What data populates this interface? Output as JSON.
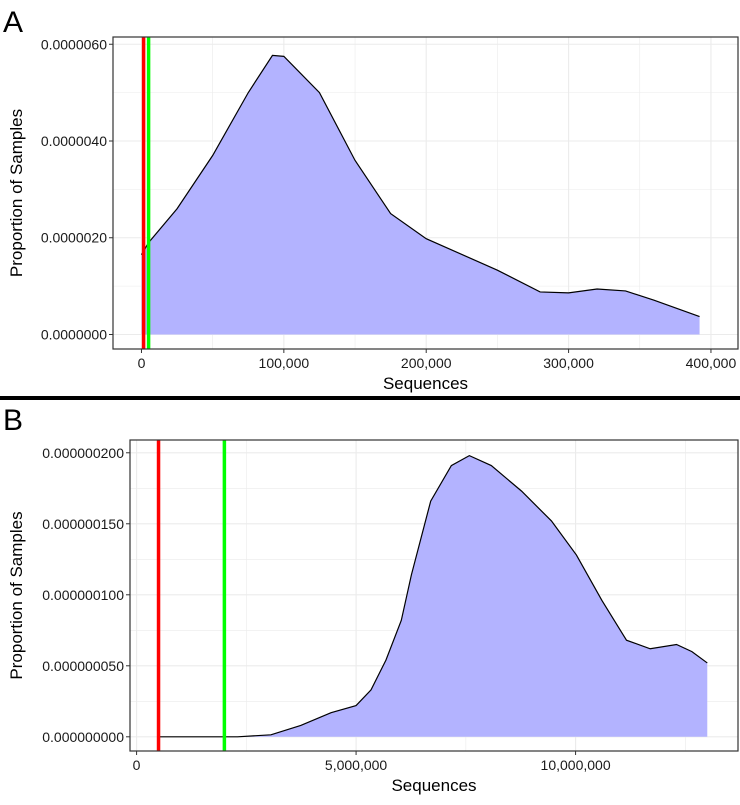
{
  "chart_data": [
    {
      "panel_label": "A",
      "type": "area",
      "xlabel": "Sequences",
      "ylabel": "Proportion of Samples",
      "xlim": [
        -20000,
        419000
      ],
      "ylim": [
        -3e-07,
        6.15e-06
      ],
      "x_ticks": [
        0,
        100000,
        200000,
        300000,
        400000
      ],
      "x_tick_labels": [
        "0",
        "100,000",
        "200,000",
        "300,000",
        "400,000"
      ],
      "y_ticks": [
        0,
        2e-06,
        4e-06,
        6e-06
      ],
      "y_tick_labels": [
        "0.0000000",
        "0.0000020",
        "0.0000040",
        "0.0000060"
      ],
      "grid": true,
      "fill_color": "#b3b3ff",
      "vlines": [
        {
          "x": 1500,
          "color": "#ff0000"
        },
        {
          "x": 5000,
          "color": "#00ff00"
        }
      ],
      "x": [
        0,
        5000,
        25000,
        50000,
        75000,
        92000,
        100000,
        125000,
        150000,
        175000,
        200000,
        250000,
        280000,
        300000,
        320000,
        340000,
        360000,
        392000
      ],
      "y": [
        1.65e-06,
        1.9e-06,
        2.6e-06,
        3.7e-06,
        5e-06,
        5.77e-06,
        5.75e-06,
        5e-06,
        3.6e-06,
        2.5e-06,
        1.98e-06,
        1.33e-06,
        8.8e-07,
        8.6e-07,
        9.4e-07,
        9e-07,
        7.1e-07,
        3.7e-07
      ]
    },
    {
      "panel_label": "B",
      "type": "area",
      "xlabel": "Sequences",
      "ylabel": "Proportion of Samples",
      "xlim": [
        -150000,
        13700000
      ],
      "ylim": [
        -1e-08,
        2.09e-07
      ],
      "x_ticks": [
        0,
        5000000,
        10000000
      ],
      "x_tick_labels": [
        "0",
        "5,000,000",
        "10,000,000"
      ],
      "y_ticks": [
        0,
        5e-08,
        1e-07,
        1.5e-07,
        2e-07
      ],
      "y_tick_labels": [
        "0.000000000",
        "0.000000050",
        "0.000000100",
        "0.000000150",
        "0.000000200"
      ],
      "grid": true,
      "fill_color": "#b3b3ff",
      "vlines": [
        {
          "x": 500000,
          "color": "#ff0000"
        },
        {
          "x": 2000000,
          "color": "#00ff00"
        }
      ],
      "x": [
        500000,
        2300000,
        3060000,
        3740000,
        4430000,
        5000000,
        5340000,
        5680000,
        6030000,
        6260000,
        6700000,
        7170000,
        7580000,
        8080000,
        8770000,
        9450000,
        10020000,
        10600000,
        11160000,
        11700000,
        12300000,
        12650000,
        13000000
      ],
      "y": [
        0,
        0,
        1.4e-09,
        8e-09,
        1.7e-08,
        2.2e-08,
        3.3e-08,
        5.4e-08,
        8.2e-08,
        1.14e-07,
        1.66e-07,
        1.91e-07,
        1.98e-07,
        1.91e-07,
        1.73e-07,
        1.52e-07,
        1.28e-07,
        9.6e-08,
        6.8e-08,
        6.2e-08,
        6.5e-08,
        6e-08,
        5.2e-08
      ]
    }
  ]
}
